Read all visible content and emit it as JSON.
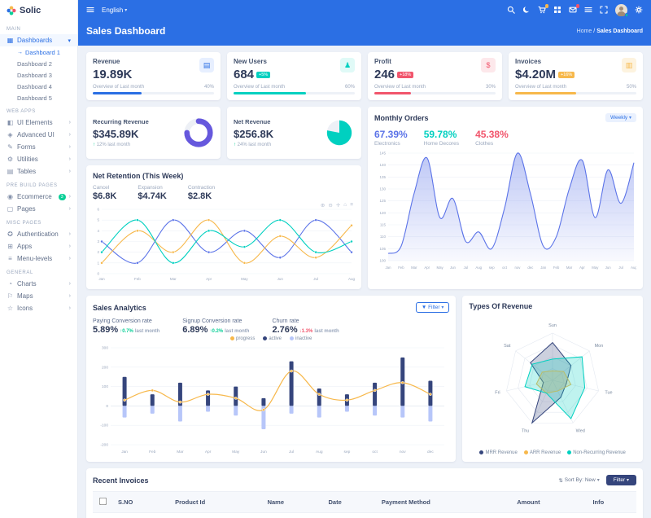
{
  "brand": {
    "name": "Solic"
  },
  "topbar": {
    "language": "English",
    "icons": [
      {
        "name": "search-icon"
      },
      {
        "name": "moon-icon"
      },
      {
        "name": "cart-icon",
        "badge": "#f7b84b"
      },
      {
        "name": "grid-icon"
      },
      {
        "name": "mail-icon",
        "badge": "#f1556c"
      },
      {
        "name": "list-icon"
      },
      {
        "name": "fullscreen-icon"
      },
      {
        "name": "avatar",
        "status": "#0acf97"
      },
      {
        "name": "gear-icon"
      }
    ]
  },
  "page": {
    "title": "Sales Dashboard",
    "breadcrumb_root": "Home",
    "breadcrumb_sep": "/",
    "breadcrumb_current": "Sales Dashboard"
  },
  "sidebar": {
    "sections": [
      {
        "label": "MAIN",
        "items": [
          {
            "label": "Dashboards",
            "glyph": "▦",
            "icon": "dashboard-icon",
            "active": true,
            "expanded": true,
            "children": [
              "Dashboard 1",
              "Dashboard 2",
              "Dashboard 3",
              "Dashboard 4",
              "Dashboard 5"
            ],
            "active_child": 0
          }
        ]
      },
      {
        "label": "WEB APPS",
        "items": [
          {
            "label": "UI Elements",
            "glyph": "◧",
            "icon": "ui-elements-icon"
          },
          {
            "label": "Advanced UI",
            "glyph": "◈",
            "icon": "advanced-ui-icon"
          },
          {
            "label": "Forms",
            "glyph": "✎",
            "icon": "forms-icon"
          },
          {
            "label": "Utilities",
            "glyph": "⚙",
            "icon": "utilities-icon"
          },
          {
            "label": "Tables",
            "glyph": "▤",
            "icon": "tables-icon"
          }
        ]
      },
      {
        "label": "PRE BUILD PAGES",
        "items": [
          {
            "label": "Ecommerce",
            "glyph": "◉",
            "icon": "ecommerce-icon",
            "badge": "3",
            "badge_color": "#0acf97"
          },
          {
            "label": "Pages",
            "glyph": "▢",
            "icon": "pages-icon"
          }
        ]
      },
      {
        "label": "MISC PAGES",
        "items": [
          {
            "label": "Authentication",
            "glyph": "✪",
            "icon": "authentication-icon"
          },
          {
            "label": "Apps",
            "glyph": "⊞",
            "icon": "apps-icon"
          },
          {
            "label": "Menu-levels",
            "glyph": "≡",
            "icon": "menu-levels-icon"
          }
        ]
      },
      {
        "label": "GENERAL",
        "items": [
          {
            "label": "Charts",
            "glyph": "◔",
            "icon": "charts-icon"
          },
          {
            "label": "Maps",
            "glyph": "⚐",
            "icon": "maps-icon"
          },
          {
            "label": "Icons",
            "glyph": "☆",
            "icon": "icons-icon"
          }
        ]
      }
    ]
  },
  "stats": [
    {
      "label": "Revenue",
      "value": "19.89K",
      "badge": "",
      "badge_color": "",
      "note": "Overview of Last month",
      "percent": "40%",
      "bar": 40,
      "color": "#2b6fe4",
      "tint": "#e7efff",
      "glyph": "▤",
      "icon": "revenue-icon"
    },
    {
      "label": "New Users",
      "value": "684",
      "badge": "+5%",
      "badge_color": "#00d0c0",
      "note": "Overview of Last month",
      "percent": "60%",
      "bar": 60,
      "color": "#00d0c0",
      "tint": "#e0faf7",
      "glyph": "♟",
      "icon": "new-users-icon"
    },
    {
      "label": "Profit",
      "value": "246",
      "badge": "+18%",
      "badge_color": "#f1556c",
      "note": "Overview of Last month",
      "percent": "30%",
      "bar": 30,
      "color": "#f1556c",
      "tint": "#fde8eb",
      "glyph": "$",
      "icon": "profit-icon"
    },
    {
      "label": "Invoices",
      "value": "$4.20M",
      "badge": "+16%",
      "badge_color": "#f7b84b",
      "note": "Overview of Last month",
      "percent": "50%",
      "bar": 50,
      "color": "#f7b84b",
      "tint": "#fdf3df",
      "glyph": "▥",
      "icon": "invoices-icon"
    }
  ],
  "revenue_cards": [
    {
      "label": "Recurring Revenue",
      "value": "$345.89K",
      "delta": "12%",
      "suffix": "last month",
      "dir": "up",
      "chart": "donut",
      "percent": 75,
      "color": "#6658dd"
    },
    {
      "label": "Net Revenue",
      "value": "$256.8K",
      "delta": "24%",
      "suffix": "last month",
      "dir": "up",
      "chart": "pie",
      "percent": 78,
      "color": "#00d0c0"
    }
  ],
  "monthly_orders": {
    "title": "Monthly Orders",
    "range": "Weekly",
    "stats": [
      {
        "percent": "67.39%",
        "label": "Electronics",
        "color": "#5b73e8"
      },
      {
        "percent": "59.78%",
        "label": "Home Decores",
        "color": "#00d0c0"
      },
      {
        "percent": "45.38%",
        "label": "Clothes",
        "color": "#f1556c"
      }
    ],
    "chart": {
      "type": "area",
      "x": [
        "Jan",
        "Feb",
        "Mar",
        "Apr",
        "May",
        "Jun",
        "Jul",
        "Aug",
        "sep",
        "oct",
        "nov",
        "dec",
        "Jan",
        "Feb",
        "Mar",
        "Apr",
        "May",
        "Jun",
        "Jul",
        "Aug"
      ],
      "values": [
        103,
        106,
        128,
        143,
        118,
        126,
        108,
        112,
        105,
        122,
        145,
        128,
        106,
        110,
        130,
        142,
        118,
        138,
        124,
        141
      ],
      "ylim": [
        100,
        145
      ],
      "ystep": 5,
      "color": "#5b73e8"
    }
  },
  "net_retention": {
    "title": "Net Retention (This Week)",
    "stats": [
      {
        "label": "Cancel",
        "value": "$6.8K"
      },
      {
        "label": "Expansion",
        "value": "$4.74K"
      },
      {
        "label": "Contraction",
        "value": "$2.8K"
      }
    ],
    "toolbar": [
      "zoom-in",
      "zoom-out",
      "pan",
      "home",
      "menu"
    ],
    "chart": {
      "type": "line",
      "x": [
        "Jan",
        "Feb",
        "Mar",
        "Apr",
        "May",
        "Jun",
        "Jul",
        "Aug"
      ],
      "ylim": [
        0,
        6
      ],
      "ystep": 1,
      "series": [
        {
          "name": "cancel",
          "color": "#5b73e8",
          "values": [
            3,
            1,
            5,
            2,
            4,
            1.5,
            5,
            2
          ]
        },
        {
          "name": "expansion",
          "color": "#f7b84b",
          "values": [
            1,
            4,
            2,
            5,
            1,
            3.5,
            1.5,
            4.5
          ]
        },
        {
          "name": "contraction",
          "color": "#00d0c0",
          "values": [
            2,
            5,
            1,
            4,
            2.5,
            5,
            2,
            3
          ]
        }
      ]
    }
  },
  "sales_analytics": {
    "title": "Sales Analytics",
    "filter_label": "Filter",
    "metrics": [
      {
        "label": "Paying Conversion rate",
        "value": "5.89%",
        "delta": "0.7%",
        "suffix": "last month",
        "dir": "up"
      },
      {
        "label": "Signup Conversion rate",
        "value": "6.89%",
        "delta": "0.2%",
        "suffix": "last month",
        "dir": "up"
      },
      {
        "label": "Churn rate",
        "value": "2.76%",
        "delta": "1.3%",
        "suffix": "last month",
        "dir": "down"
      }
    ],
    "legend": [
      {
        "label": "progress",
        "color": "#f7b84b"
      },
      {
        "label": "active",
        "color": "#35457c"
      },
      {
        "label": "inactive",
        "color": "#b7c6f9"
      }
    ],
    "chart": {
      "type": "bar-line",
      "x": [
        "Jan",
        "Feb",
        "Mar",
        "Apr",
        "May",
        "Jun",
        "Jul",
        "Aug",
        "sep",
        "oct",
        "nov",
        "dec"
      ],
      "ylim": [
        -200,
        300
      ],
      "ystep": 100,
      "bars_up": {
        "name": "active",
        "color": "#35457c",
        "values": [
          150,
          60,
          120,
          80,
          100,
          40,
          230,
          90,
          60,
          120,
          250,
          130
        ]
      },
      "bars_down": {
        "name": "inactive",
        "color": "#b7c6f9",
        "values": [
          -60,
          -40,
          -80,
          -30,
          -50,
          -120,
          -40,
          -60,
          -30,
          -50,
          -60,
          -80
        ]
      },
      "line": {
        "name": "progress",
        "color": "#f7b84b",
        "values": [
          30,
          80,
          20,
          60,
          40,
          -20,
          180,
          60,
          30,
          80,
          120,
          60
        ]
      }
    }
  },
  "types_of_revenue": {
    "title": "Types Of Revenue",
    "chart": {
      "type": "radar",
      "categories": [
        "Sun",
        "Mon",
        "Tue",
        "Wed",
        "Thu",
        "Fri",
        "Sat"
      ],
      "max": 100,
      "series": [
        {
          "name": "MRR Revenue",
          "color": "#35457c",
          "values": [
            80,
            50,
            30,
            40,
            100,
            20,
            60
          ]
        },
        {
          "name": "ARR Revenue",
          "color": "#f7b84b",
          "values": [
            20,
            30,
            40,
            25,
            30,
            35,
            28
          ]
        },
        {
          "name": "Non-Recurring Revenue",
          "color": "#00d0c0",
          "values": [
            45,
            80,
            70,
            90,
            30,
            60,
            55
          ]
        }
      ]
    }
  },
  "recent_invoices": {
    "title": "Recent Invoices",
    "sort_label": "Sort By: New",
    "filter_label": "Filter",
    "columns": [
      "S.NO",
      "Product Id",
      "Name",
      "Date",
      "Payment Method",
      "Amount",
      "Info"
    ]
  }
}
